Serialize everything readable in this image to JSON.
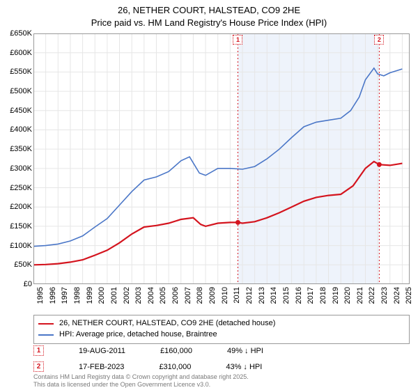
{
  "title": {
    "line1": "26, NETHER COURT, HALSTEAD, CO9 2HE",
    "line2": "Price paid vs. HM Land Registry's House Price Index (HPI)"
  },
  "chart": {
    "type": "line",
    "background_color": "#ffffff",
    "plot_border_color": "#999999",
    "grid_color": "#e6e6e6",
    "shaded_band_color": "#eef3fb",
    "shaded_band_x": [
      2011.63,
      2023.13
    ],
    "xlim": [
      1995,
      2025.6
    ],
    "ylim": [
      0,
      650000
    ],
    "ytick_step": 50000,
    "ytick_prefix": "£",
    "ytick_suffix": "K",
    "yticks": [
      {
        "v": 0,
        "label": "£0"
      },
      {
        "v": 50000,
        "label": "£50K"
      },
      {
        "v": 100000,
        "label": "£100K"
      },
      {
        "v": 150000,
        "label": "£150K"
      },
      {
        "v": 200000,
        "label": "£200K"
      },
      {
        "v": 250000,
        "label": "£250K"
      },
      {
        "v": 300000,
        "label": "£300K"
      },
      {
        "v": 350000,
        "label": "£350K"
      },
      {
        "v": 400000,
        "label": "£400K"
      },
      {
        "v": 450000,
        "label": "£450K"
      },
      {
        "v": 500000,
        "label": "£500K"
      },
      {
        "v": 550000,
        "label": "£550K"
      },
      {
        "v": 600000,
        "label": "£600K"
      },
      {
        "v": 650000,
        "label": "£650K"
      }
    ],
    "xticks": [
      1995,
      1996,
      1997,
      1998,
      1999,
      2000,
      2001,
      2002,
      2003,
      2004,
      2005,
      2006,
      2007,
      2008,
      2009,
      2010,
      2011,
      2012,
      2013,
      2014,
      2015,
      2016,
      2017,
      2018,
      2019,
      2020,
      2021,
      2022,
      2023,
      2024,
      2025
    ],
    "series": [
      {
        "name": "price_paid",
        "legend": "26, NETHER COURT, HALSTEAD, CO9 2HE (detached house)",
        "color": "#d4141e",
        "line_width": 2.2,
        "data": [
          [
            1995,
            50000
          ],
          [
            1996,
            51000
          ],
          [
            1997,
            53000
          ],
          [
            1998,
            57000
          ],
          [
            1999,
            63000
          ],
          [
            2000,
            75000
          ],
          [
            2001,
            88000
          ],
          [
            2002,
            107000
          ],
          [
            2003,
            130000
          ],
          [
            2004,
            148000
          ],
          [
            2005,
            152000
          ],
          [
            2006,
            158000
          ],
          [
            2007,
            168000
          ],
          [
            2008,
            172000
          ],
          [
            2008.6,
            155000
          ],
          [
            2009,
            150000
          ],
          [
            2010,
            158000
          ],
          [
            2011,
            160000
          ],
          [
            2011.63,
            160000
          ],
          [
            2012,
            158000
          ],
          [
            2013,
            162000
          ],
          [
            2014,
            172000
          ],
          [
            2015,
            185000
          ],
          [
            2016,
            200000
          ],
          [
            2017,
            215000
          ],
          [
            2018,
            225000
          ],
          [
            2019,
            230000
          ],
          [
            2020,
            233000
          ],
          [
            2021,
            255000
          ],
          [
            2022,
            300000
          ],
          [
            2022.7,
            318000
          ],
          [
            2023.13,
            310000
          ],
          [
            2024,
            308000
          ],
          [
            2025,
            313000
          ]
        ],
        "markers": [
          {
            "x": 2011.63,
            "y": 160000
          },
          {
            "x": 2023.13,
            "y": 310000
          }
        ]
      },
      {
        "name": "hpi",
        "legend": "HPI: Average price, detached house, Braintree",
        "color": "#4a76c7",
        "line_width": 1.6,
        "data": [
          [
            1995,
            98000
          ],
          [
            1996,
            100000
          ],
          [
            1997,
            104000
          ],
          [
            1998,
            112000
          ],
          [
            1999,
            125000
          ],
          [
            2000,
            148000
          ],
          [
            2001,
            170000
          ],
          [
            2002,
            205000
          ],
          [
            2003,
            240000
          ],
          [
            2004,
            270000
          ],
          [
            2005,
            278000
          ],
          [
            2006,
            292000
          ],
          [
            2007,
            320000
          ],
          [
            2007.7,
            330000
          ],
          [
            2008.5,
            288000
          ],
          [
            2009,
            282000
          ],
          [
            2010,
            300000
          ],
          [
            2011,
            300000
          ],
          [
            2012,
            298000
          ],
          [
            2013,
            305000
          ],
          [
            2014,
            325000
          ],
          [
            2015,
            350000
          ],
          [
            2016,
            380000
          ],
          [
            2017,
            408000
          ],
          [
            2018,
            420000
          ],
          [
            2019,
            425000
          ],
          [
            2020,
            430000
          ],
          [
            2020.8,
            450000
          ],
          [
            2021.5,
            485000
          ],
          [
            2022,
            530000
          ],
          [
            2022.7,
            560000
          ],
          [
            2023,
            545000
          ],
          [
            2023.5,
            540000
          ],
          [
            2024,
            548000
          ],
          [
            2025,
            558000
          ]
        ]
      }
    ],
    "annotations": [
      {
        "id": "1",
        "x": 2011.63,
        "color": "#d4141e"
      },
      {
        "id": "2",
        "x": 2023.13,
        "color": "#d4141e"
      }
    ]
  },
  "legend": {
    "rows": [
      {
        "color": "#d4141e",
        "label": "26, NETHER COURT, HALSTEAD, CO9 2HE (detached house)"
      },
      {
        "color": "#4a76c7",
        "label": "HPI: Average price, detached house, Braintree"
      }
    ]
  },
  "marker_table": {
    "rows": [
      {
        "id": "1",
        "color": "#d4141e",
        "date": "19-AUG-2011",
        "price": "£160,000",
        "delta": "49% ↓ HPI"
      },
      {
        "id": "2",
        "color": "#d4141e",
        "date": "17-FEB-2023",
        "price": "£310,000",
        "delta": "43% ↓ HPI"
      }
    ]
  },
  "attribution": {
    "line1": "Contains HM Land Registry data © Crown copyright and database right 2025.",
    "line2": "This data is licensed under the Open Government Licence v3.0."
  }
}
